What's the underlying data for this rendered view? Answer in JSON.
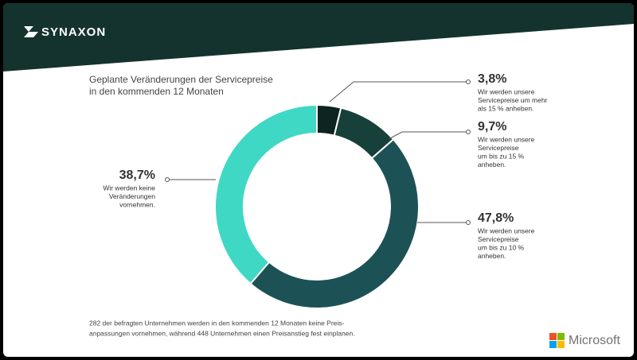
{
  "header": {
    "logo": "SYNAXON"
  },
  "footer": {
    "logo": "Microsoft"
  },
  "chart_data": {
    "type": "pie",
    "donut": true,
    "title": [
      "Geplante Veränderungen der Servicepreise",
      "in den kommenden 12 Monaten"
    ],
    "categories": [
      [
        "Wir werden unsere",
        "Servicepreise um mehr",
        "als 15 % anheben."
      ],
      [
        "Wir werden unsere",
        "Servicepreise",
        "um bis zu 15 %",
        "anheben."
      ],
      [
        "Wir werden unsere",
        "Servicepreise",
        "um bis zu 10 %",
        "anheben."
      ],
      [
        "Wir werden keine",
        "Veränderungen",
        "vornehmen."
      ]
    ],
    "values": [
      3.8,
      9.7,
      47.8,
      38.7
    ],
    "value_labels": [
      "3,8%",
      "9,7%",
      "47,8%",
      "38,7%"
    ],
    "colors": [
      "#0d2421",
      "#17403a",
      "#1c5256",
      "#3fd8c4"
    ],
    "note": [
      "282 der befragten Unternehmen werden in den kommenden 12 Monaten keine Preis-",
      "anpassungen vornehmen, während 448 Unternehmen einen Preisanstieg fest einplanen."
    ]
  }
}
